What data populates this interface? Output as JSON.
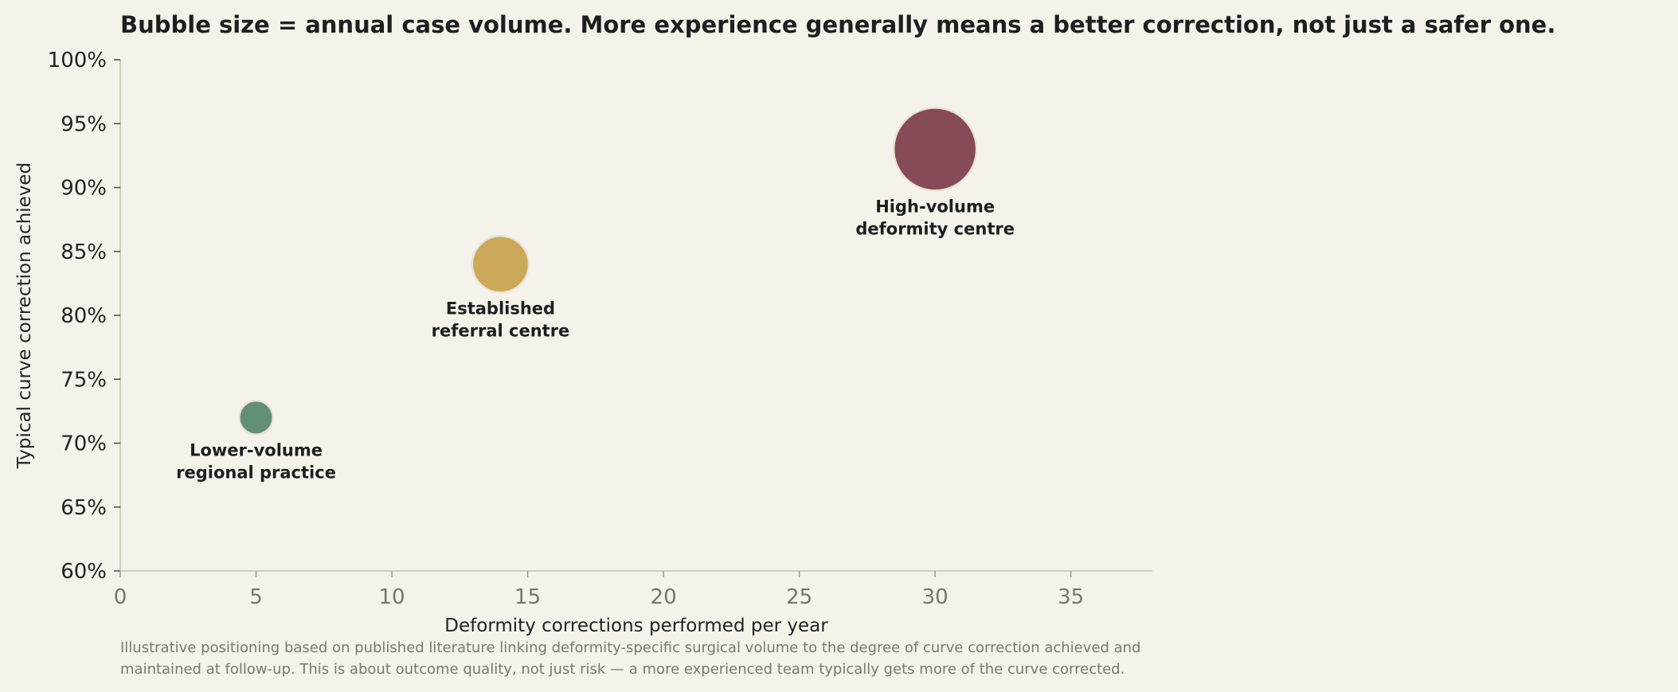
{
  "chart_data": {
    "type": "scatter",
    "title": "Bubble size = annual case volume. More experience generally means a better correction, not just a safer one.",
    "xlabel": "Deformity corrections performed per year",
    "ylabel": "Typical curve correction achieved",
    "xlim": [
      0,
      38
    ],
    "ylim": [
      60,
      100
    ],
    "xticks": [
      0,
      5,
      10,
      15,
      20,
      25,
      30,
      35
    ],
    "xtick_labels": [
      "0",
      "5",
      "10",
      "15",
      "20",
      "25",
      "30",
      "35"
    ],
    "yticks": [
      60,
      65,
      70,
      75,
      80,
      85,
      90,
      95,
      100
    ],
    "ytick_labels": [
      "60%",
      "65%",
      "70%",
      "75%",
      "80%",
      "85%",
      "90%",
      "95%",
      "100%"
    ],
    "grid": false,
    "points": [
      {
        "label_lines": [
          "Lower-volume",
          "regional practice"
        ],
        "x": 5,
        "y": 72,
        "size": 5,
        "color": "#5a8a70"
      },
      {
        "label_lines": [
          "Established",
          "referral centre"
        ],
        "x": 14,
        "y": 84,
        "size": 14,
        "color": "#c9a352"
      },
      {
        "label_lines": [
          "High-volume",
          "deformity centre"
        ],
        "x": 30,
        "y": 93,
        "size": 30,
        "color": "#7f414f"
      }
    ],
    "footnote_lines": [
      "Illustrative positioning based on published literature linking deformity-specific surgical volume to the degree of curve correction achieved and",
      "maintained at follow-up. This is about outcome quality, not just risk — a more experienced team typically gets more of the curve corrected."
    ]
  }
}
